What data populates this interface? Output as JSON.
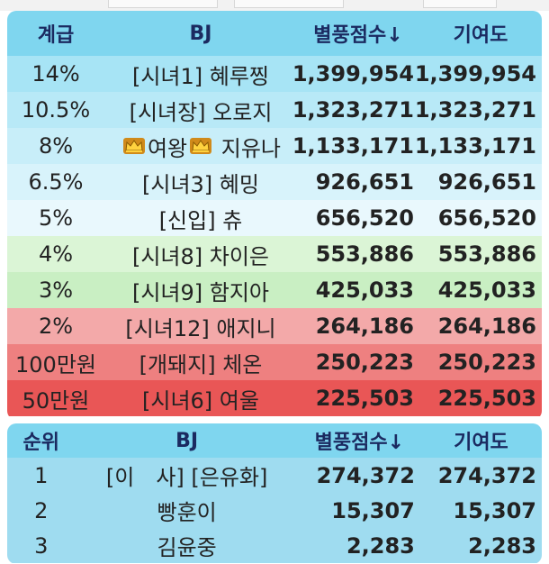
{
  "top_strip": {
    "text": ""
  },
  "table1": {
    "headers": {
      "rank": "계급",
      "bj": "BJ",
      "score": "별풍점수↓",
      "contrib": "기여도"
    },
    "rows": [
      {
        "rank": "14%",
        "bj": "[시녀1] 혜루찡",
        "score": "1,399,954",
        "contrib": "1,399,954",
        "bg": "#a7e4f5"
      },
      {
        "rank": "10.5%",
        "bj": "[시녀장] 오로지",
        "score": "1,323,271",
        "contrib": "1,323,271",
        "bg": "#b8e9f7"
      },
      {
        "rank": "8%",
        "bj_prefix": "",
        "bj_mid": "여왕",
        "bj_suffix": " 지유나",
        "crowned": true,
        "score": "1,133,171",
        "contrib": "1,133,171",
        "bg": "#c8eef9"
      },
      {
        "rank": "6.5%",
        "bj": "[시녀3] 혜밍",
        "score": "926,651",
        "contrib": "926,651",
        "bg": "#d8f3fb"
      },
      {
        "rank": "5%",
        "bj": "[신입] 츄",
        "score": "656,520",
        "contrib": "656,520",
        "bg": "#e9f8fd"
      },
      {
        "rank": "4%",
        "bj": "[시녀8] 차이은",
        "score": "553,886",
        "contrib": "553,886",
        "bg": "#dbf5d6"
      },
      {
        "rank": "3%",
        "bj": "[시녀9] 함지아",
        "score": "425,033",
        "contrib": "425,033",
        "bg": "#c9efc3"
      },
      {
        "rank": "2%",
        "bj": "[시녀12] 애지니",
        "score": "264,186",
        "contrib": "264,186",
        "bg": "#f3a9a9"
      },
      {
        "rank": "100만원",
        "bj": "[개돼지] 체온",
        "score": "250,223",
        "contrib": "250,223",
        "bg": "#ee8080"
      },
      {
        "rank": "50만원",
        "bj": "[시녀6] 여울",
        "score": "225,503",
        "contrib": "225,503",
        "bg": "#e95656"
      }
    ]
  },
  "table2": {
    "headers": {
      "rank": "순위",
      "bj": "BJ",
      "score": "별풍점수↓",
      "contrib": "기여도"
    },
    "rows": [
      {
        "rank": "1",
        "bj": "[이　사] [은유화]",
        "score": "274,372",
        "contrib": "274,372",
        "bg": "#9fdcf0"
      },
      {
        "rank": "2",
        "bj": "빵훈이",
        "score": "15,307",
        "contrib": "15,307",
        "bg": "#9fdcf0"
      },
      {
        "rank": "3",
        "bj": "김윤중",
        "score": "2,283",
        "contrib": "2,283",
        "bg": "#9fdcf0"
      }
    ]
  },
  "colors": {
    "header_bg": "#7fd6ef",
    "header_text": "#1b2a60",
    "crown": "#e6b422"
  },
  "icons": {
    "crown": "crown-icon"
  }
}
